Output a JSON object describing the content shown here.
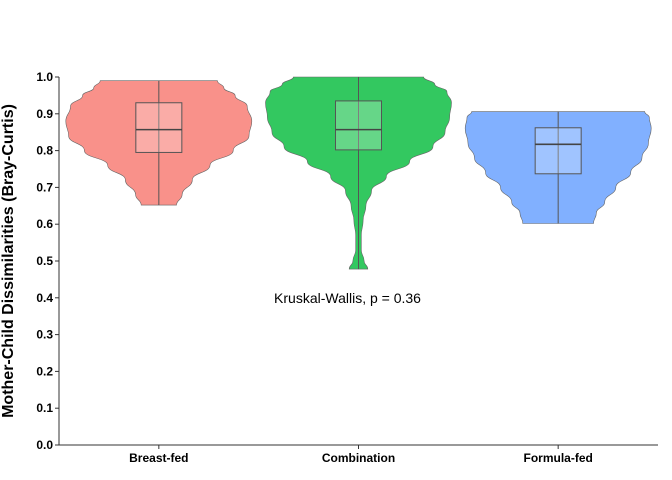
{
  "chart_data": {
    "type": "violin",
    "ylabel": "Mother-Child Dissimilarities (Bray-Curtis)",
    "xlabel": "",
    "ylim": [
      0.0,
      1.0
    ],
    "yticks": [
      "0.0",
      "0.1",
      "0.2",
      "0.3",
      "0.4",
      "0.5",
      "0.6",
      "0.7",
      "0.8",
      "0.9",
      "1.0"
    ],
    "categories": [
      "Breast-fed",
      "Combination",
      "Formula-fed"
    ],
    "annotation": "Kruskal-Wallis, p = 0.36",
    "grid": false,
    "groups": [
      {
        "category": "Breast-fed",
        "color": "#F8766D",
        "min": 0.652,
        "q1": 0.795,
        "median": 0.857,
        "q3": 0.93,
        "max": 0.99,
        "density": [
          [
            0.652,
            0.19
          ],
          [
            0.68,
            0.25
          ],
          [
            0.72,
            0.36
          ],
          [
            0.76,
            0.55
          ],
          [
            0.8,
            0.8
          ],
          [
            0.84,
            0.97
          ],
          [
            0.88,
            1.0
          ],
          [
            0.92,
            0.95
          ],
          [
            0.95,
            0.82
          ],
          [
            0.97,
            0.7
          ],
          [
            0.99,
            0.63
          ]
        ]
      },
      {
        "category": "Combination",
        "color": "#00BA38",
        "min": 0.478,
        "q1": 0.802,
        "median": 0.857,
        "q3": 0.935,
        "max": 1.0,
        "density": [
          [
            0.478,
            0.1
          ],
          [
            0.5,
            0.06
          ],
          [
            0.53,
            0.03
          ],
          [
            0.57,
            0.03
          ],
          [
            0.61,
            0.05
          ],
          [
            0.65,
            0.08
          ],
          [
            0.69,
            0.14
          ],
          [
            0.73,
            0.3
          ],
          [
            0.77,
            0.55
          ],
          [
            0.81,
            0.8
          ],
          [
            0.85,
            0.93
          ],
          [
            0.89,
            0.98
          ],
          [
            0.93,
            1.0
          ],
          [
            0.96,
            0.95
          ],
          [
            0.98,
            0.82
          ],
          [
            1.0,
            0.7
          ]
        ]
      },
      {
        "category": "Formula-fed",
        "color": "#619CFF",
        "min": 0.602,
        "q1": 0.737,
        "median": 0.817,
        "q3": 0.862,
        "max": 0.906,
        "density": [
          [
            0.602,
            0.38
          ],
          [
            0.63,
            0.41
          ],
          [
            0.66,
            0.5
          ],
          [
            0.7,
            0.62
          ],
          [
            0.74,
            0.78
          ],
          [
            0.78,
            0.9
          ],
          [
            0.82,
            0.97
          ],
          [
            0.86,
            1.0
          ],
          [
            0.89,
            0.98
          ],
          [
            0.906,
            0.93
          ]
        ]
      }
    ]
  }
}
